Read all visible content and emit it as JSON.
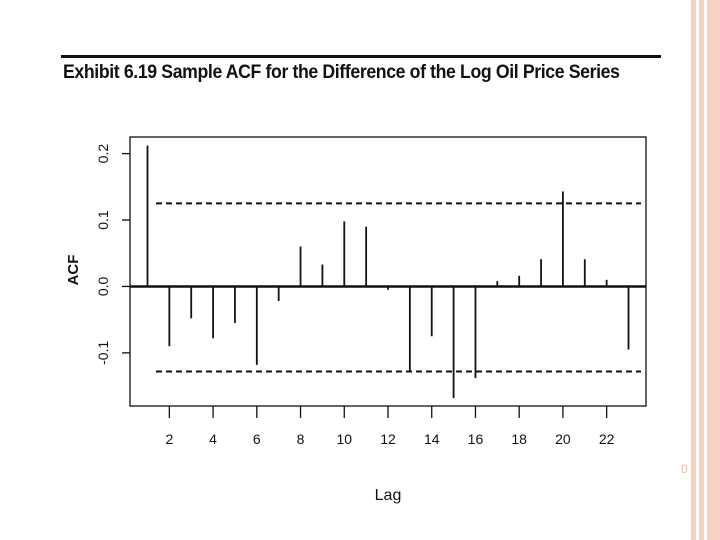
{
  "exhibit": {
    "title": "Exhibit 6.19   Sample ACF for the Difference of the Log Oil Price Series"
  },
  "page_number": "0",
  "chart_data": {
    "type": "bar",
    "title": "",
    "xlabel": "Lag",
    "ylabel": "ACF",
    "x": [
      1,
      2,
      3,
      4,
      5,
      6,
      7,
      8,
      9,
      10,
      11,
      12,
      13,
      14,
      15,
      16,
      17,
      18,
      19,
      20,
      21,
      22,
      23
    ],
    "values": [
      0.212,
      -0.09,
      -0.048,
      -0.078,
      -0.055,
      -0.118,
      -0.022,
      0.06,
      0.033,
      0.098,
      0.09,
      -0.005,
      -0.127,
      -0.075,
      -0.168,
      -0.138,
      0.008,
      0.016,
      0.041,
      0.143,
      0.041,
      0.01,
      -0.095
    ],
    "xticks": [
      2,
      4,
      6,
      8,
      10,
      12,
      14,
      16,
      18,
      20,
      22
    ],
    "xtick_labels": [
      "2",
      "4",
      "6",
      "8",
      "10",
      "12",
      "14",
      "16",
      "18",
      "20",
      "22"
    ],
    "yticks": [
      -0.1,
      0.0,
      0.1,
      0.2
    ],
    "ytick_labels": [
      "-0.1",
      "0.0",
      "0.1",
      "0.2"
    ],
    "xlim": [
      0.2,
      23.8
    ],
    "ylim": [
      -0.18,
      0.225
    ],
    "confidence_bounds": [
      0.125,
      -0.128
    ],
    "zero_line": 0,
    "grid": false,
    "colors": {
      "bars": "#111111",
      "bounds": "#111111",
      "border": "#f5d3c2"
    }
  }
}
